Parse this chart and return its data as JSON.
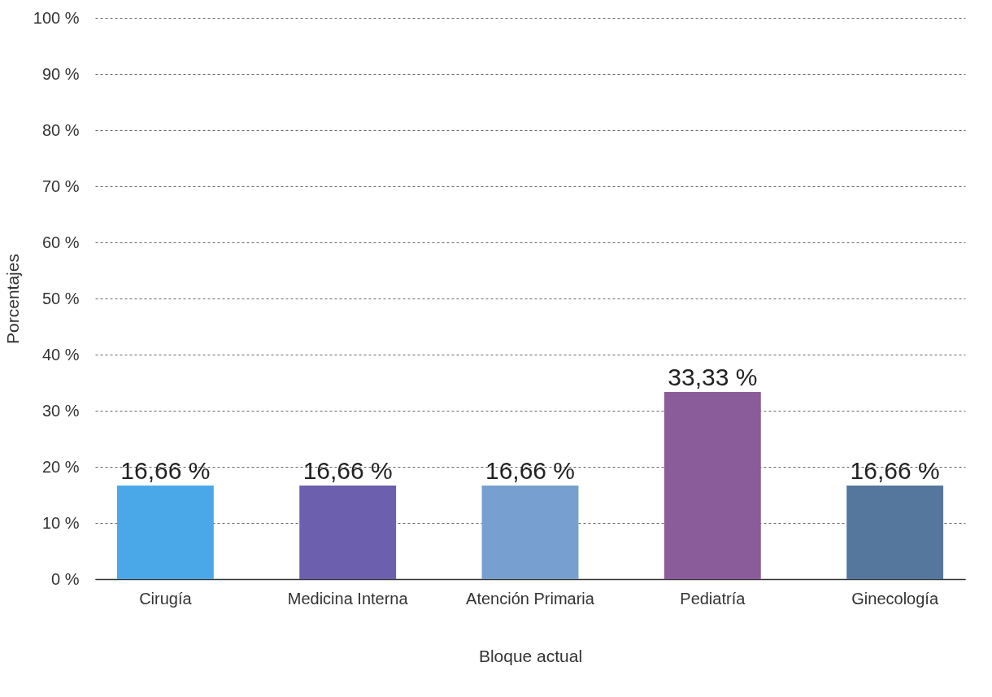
{
  "chart_data": {
    "type": "bar",
    "xlabel": "Bloque actual",
    "ylabel": "Porcentajes",
    "categories": [
      "Cirugía",
      "Medicina Interna",
      "Atención Primaria",
      "Pediatría",
      "Ginecología"
    ],
    "values": [
      16.66,
      16.66,
      16.66,
      33.33,
      16.66
    ],
    "colors": [
      "#4aa8e8",
      "#6b5fae",
      "#77a0d0",
      "#8a5c99",
      "#55779e"
    ],
    "value_labels": [
      "16,66 %",
      "16,66 %",
      "16,66 %",
      "33,33 %",
      "16,66 %"
    ],
    "ylim": [
      0,
      100
    ],
    "yticks": [
      {
        "value": 0,
        "label": "0 %"
      },
      {
        "value": 10,
        "label": "10 %"
      },
      {
        "value": 20,
        "label": "20 %"
      },
      {
        "value": 30,
        "label": "30 %"
      },
      {
        "value": 40,
        "label": "40 %"
      },
      {
        "value": 50,
        "label": "50 %"
      },
      {
        "value": 60,
        "label": "60 %"
      },
      {
        "value": 70,
        "label": "70 %"
      },
      {
        "value": 80,
        "label": "80 %"
      },
      {
        "value": 90,
        "label": "90 %"
      },
      {
        "value": 100,
        "label": "100 %"
      }
    ],
    "grid": "y",
    "legend": false
  }
}
